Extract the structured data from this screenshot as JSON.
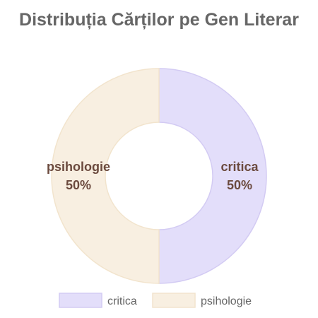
{
  "chart_data": {
    "type": "pie",
    "variant": "doughnut",
    "title": "Distribuția Cărților pe Gen Literar",
    "categories": [
      "critica",
      "psihologie"
    ],
    "values": [
      50,
      50
    ],
    "percent_labels": [
      "50%",
      "50%"
    ],
    "colors": {
      "critica": {
        "fill": "#e3defa",
        "stroke": "#d3cbf3"
      },
      "psihologie": {
        "fill": "#f8efe1",
        "stroke": "#f2e4cd"
      }
    },
    "legend_placement": "bottom",
    "label_color": "#6b4a3e"
  }
}
